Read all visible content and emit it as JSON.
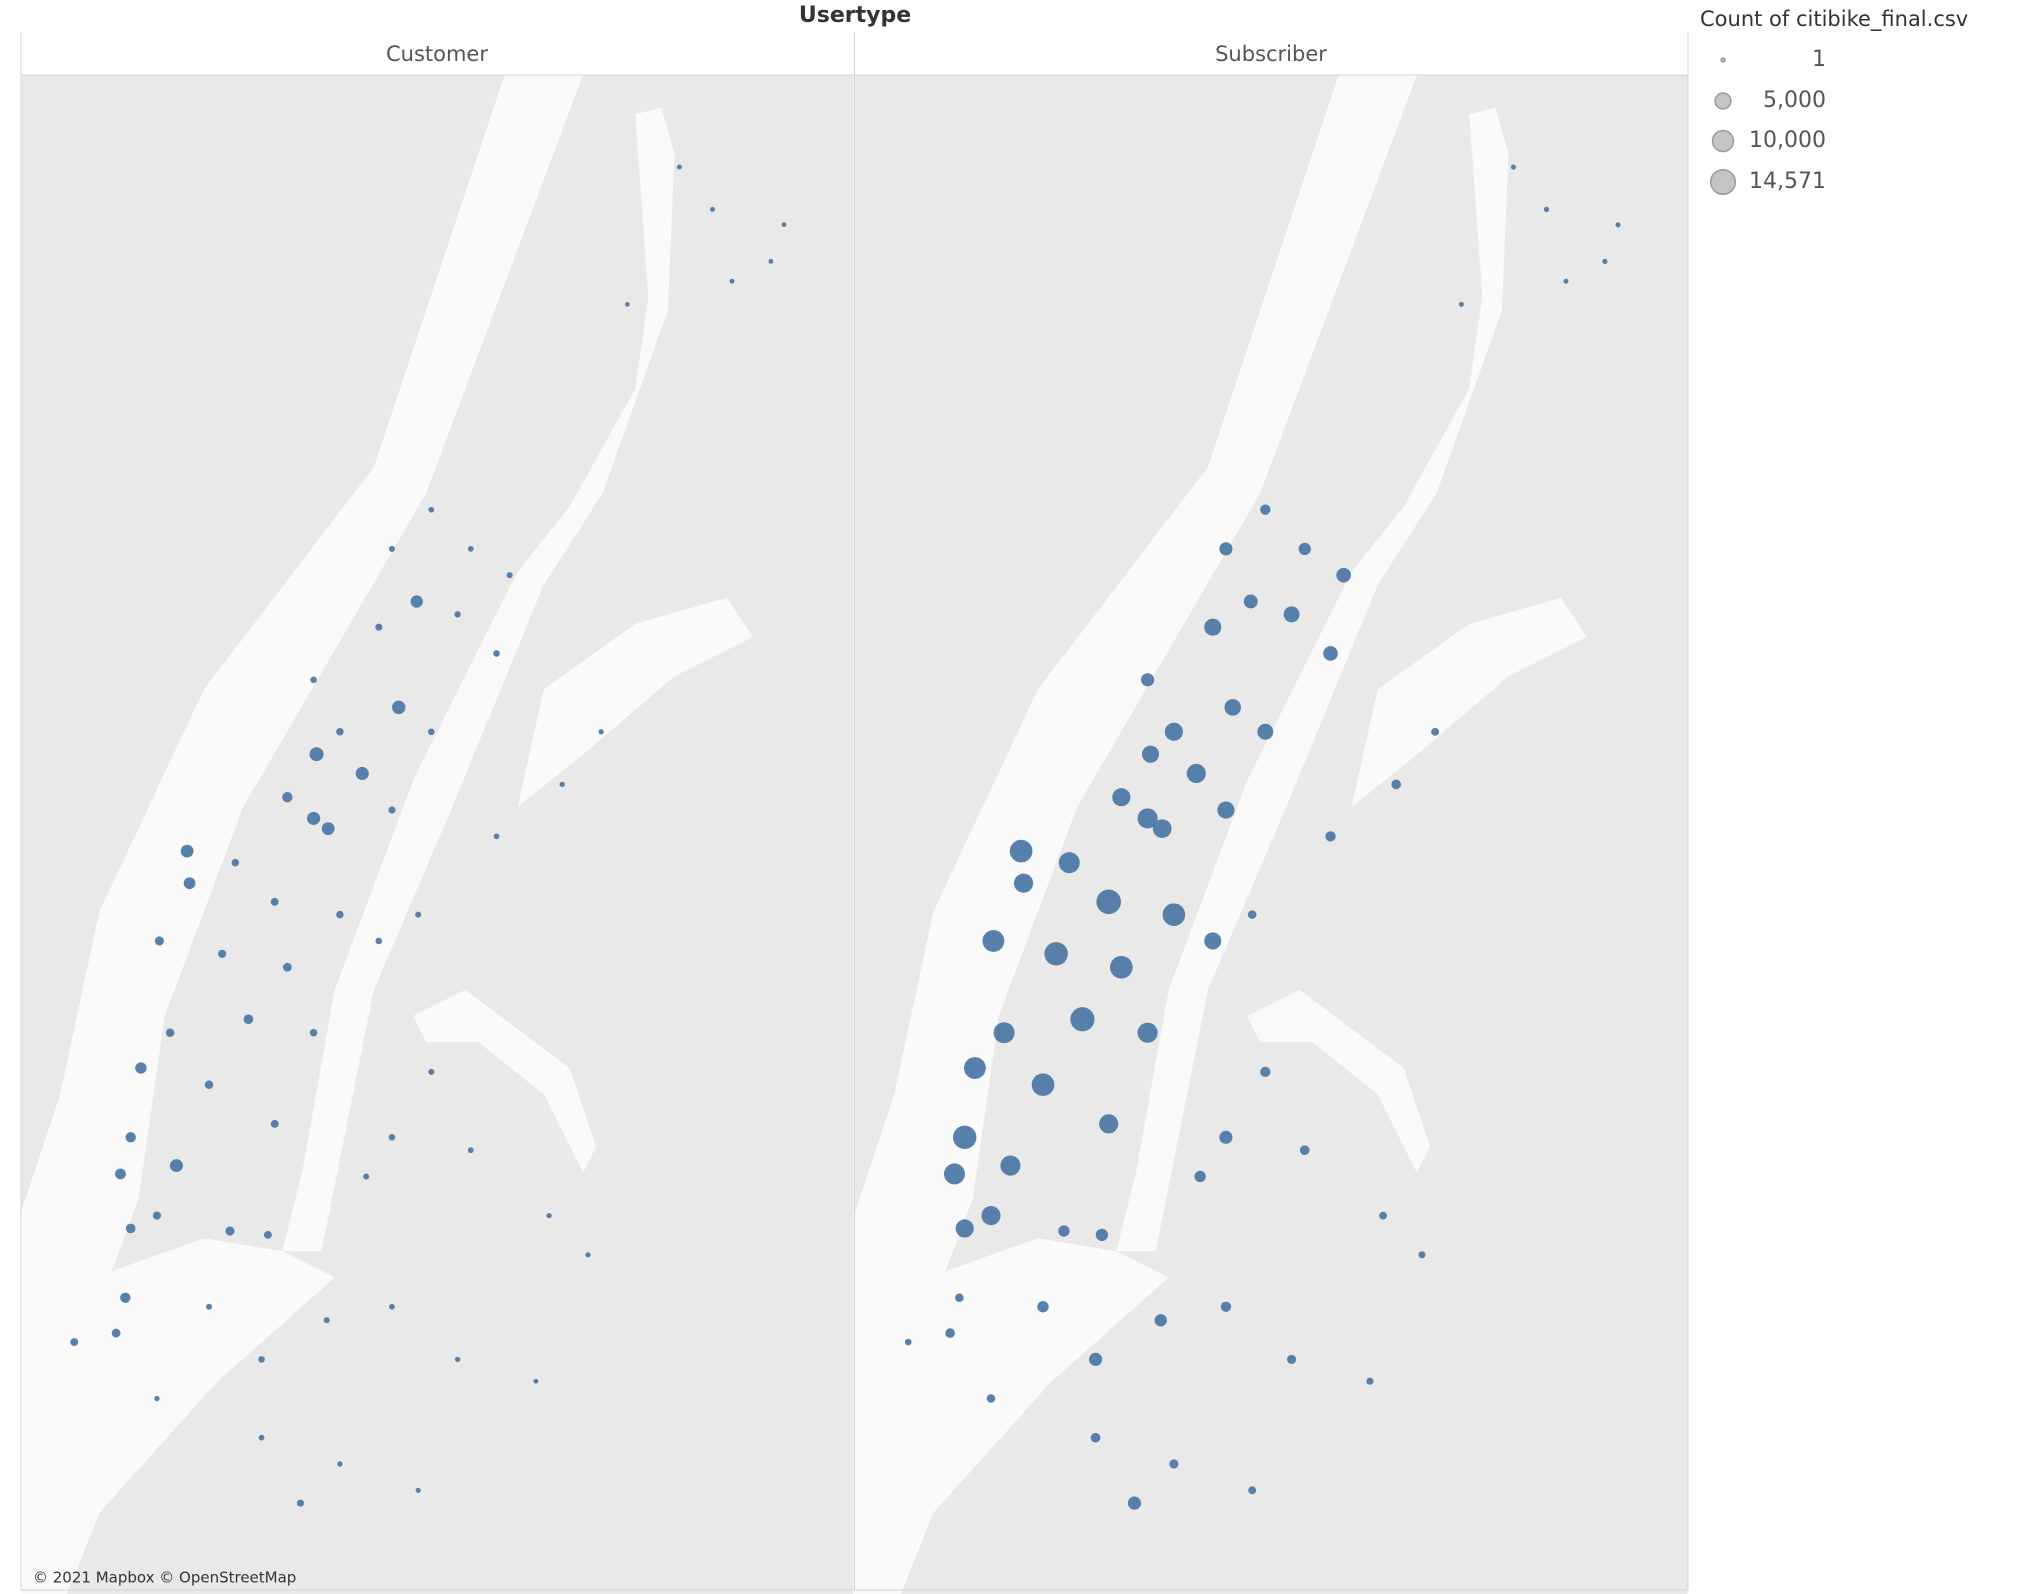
{
  "chart_data": {
    "type": "bubble-map",
    "title": "Usertype",
    "size_legend": {
      "title": "Count of citibike_final.csv",
      "values": [
        1,
        {
          "value": 5000,
          "label": "5,000"
        },
        {
          "value": 10000,
          "label": "10,000"
        },
        {
          "value": 14571,
          "label": "14,571"
        }
      ]
    },
    "attribution": "© 2021 Mapbox © OpenStreetMap",
    "lon": [
      -73.9532,
      -73.9613,
      -73.9451,
      -73.9371,
      -73.9562,
      -73.964,
      -73.9478,
      -73.9398,
      -73.9774,
      -73.9599,
      -73.972,
      -73.9768,
      -73.9674,
      -73.9532,
      -73.9828,
      -73.9774,
      -73.9744,
      -73.9613,
      -74.0034,
      -73.9935,
      -73.9854,
      -73.972,
      -74.0029,
      -74.0091,
      -73.9962,
      -73.9828,
      -73.964,
      -74.0069,
      -73.9908,
      -73.9774,
      -74.0129,
      -73.9989,
      -73.9854,
      -74.0056,
      -74.015,
      -74.0171,
      -74.0096,
      -74.015,
      -73.9559,
      -73.9398,
      -73.9263,
      -73.9183,
      -73.9532,
      -73.9613,
      -73.9666,
      -73.9451,
      -73.929,
      -73.921,
      -73.9946,
      -73.9868,
      -73.9989,
      -73.9881,
      -73.9747,
      -73.9613,
      -73.9478,
      -74.0096,
      -73.9881,
      -73.972,
      -73.9801,
      -73.9559,
      -73.9317,
      -74.0161,
      -74.018,
      -74.0266,
      -73.9022,
      -73.8954,
      -73.8834,
      -73.9129,
      -73.8807,
      -73.8914
    ],
    "lat": [
      40.814,
      40.8079,
      40.8079,
      40.8038,
      40.7997,
      40.7957,
      40.7977,
      40.7916,
      40.7875,
      40.7832,
      40.7794,
      40.7759,
      40.7729,
      40.7794,
      40.7692,
      40.7659,
      40.7643,
      40.7672,
      40.7608,
      40.759,
      40.7529,
      40.7509,
      40.7558,
      40.7468,
      40.7448,
      40.7427,
      40.7468,
      40.7325,
      40.7346,
      40.7325,
      40.727,
      40.7244,
      40.7183,
      40.7118,
      40.7162,
      40.7105,
      40.704,
      40.702,
      40.7509,
      40.7631,
      40.7712,
      40.7794,
      40.7264,
      40.7162,
      40.7101,
      40.7142,
      40.704,
      40.6979,
      40.7016,
      40.701,
      40.6898,
      40.6816,
      40.6877,
      40.6898,
      40.6816,
      40.6755,
      40.6694,
      40.6653,
      40.6592,
      40.6612,
      40.6782,
      40.6912,
      40.6857,
      40.6843,
      40.8674,
      40.8608,
      40.8527,
      40.846,
      40.8584,
      40.8496
    ],
    "series": [
      {
        "name": "Customer",
        "color": "#4e79a7",
        "values": [
          150,
          200,
          150,
          200,
          2500,
          400,
          250,
          300,
          300,
          3200,
          500,
          3600,
          3000,
          300,
          1500,
          3000,
          2800,
          400,
          2800,
          500,
          600,
          500,
          2200,
          1000,
          700,
          900,
          300,
          800,
          1200,
          500,
          2000,
          800,
          600,
          2900,
          1500,
          1700,
          700,
          1200,
          200,
          150,
          100,
          80,
          200,
          300,
          200,
          150,
          100,
          80,
          1000,
          600,
          200,
          300,
          200,
          150,
          100,
          100,
          150,
          100,
          400,
          80,
          60,
          1500,
          900,
          600,
          60,
          60,
          50,
          40,
          40,
          50
        ]
      },
      {
        "name": "Subscriber",
        "color": "#4e79a7",
        "values": [
          1500,
          3000,
          2500,
          4000,
          3500,
          6000,
          5000,
          4000,
          3000,
          5500,
          7000,
          6000,
          8000,
          5000,
          7000,
          9000,
          7500,
          6000,
          12000,
          10000,
          14571,
          12000,
          8000,
          11000,
          13000,
          12000,
          6000,
          10000,
          14000,
          9000,
          11000,
          12000,
          8000,
          9000,
          13000,
          10000,
          8000,
          7000,
          800,
          1500,
          1200,
          600,
          1500,
          3000,
          2000,
          1200,
          600,
          400,
          2000,
          2500,
          2000,
          3000,
          2500,
          1500,
          1000,
          800,
          1200,
          1000,
          3000,
          600,
          400,
          800,
          1200,
          300,
          80,
          100,
          80,
          60,
          80,
          60
        ]
      }
    ]
  }
}
